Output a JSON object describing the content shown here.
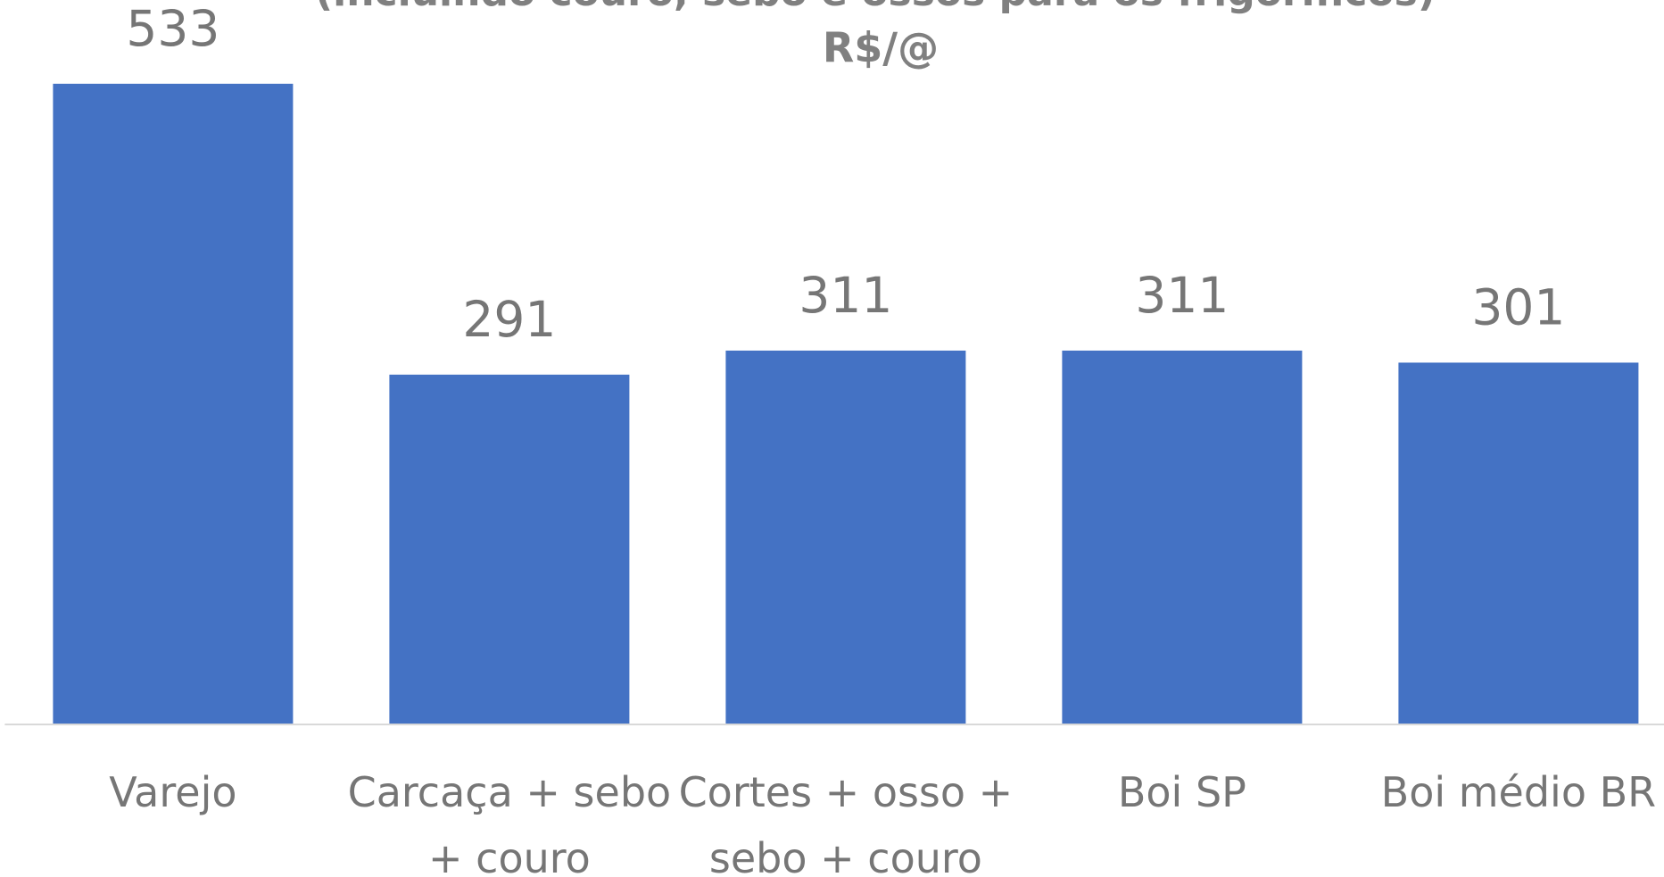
{
  "chart_data": {
    "type": "bar",
    "subtitle": "(incluindo couro, sebo e ossos para os frigoríficos)",
    "unit_label": "R$/@",
    "categories": [
      "Varejo",
      "Carcaça + sebo + couro",
      "Cortes + osso + sebo + couro",
      "Boi SP",
      "Boi médio BR"
    ],
    "values": [
      533,
      291,
      311,
      311,
      301
    ],
    "color": "#4472c4",
    "ylim": [
      0,
      600
    ]
  }
}
